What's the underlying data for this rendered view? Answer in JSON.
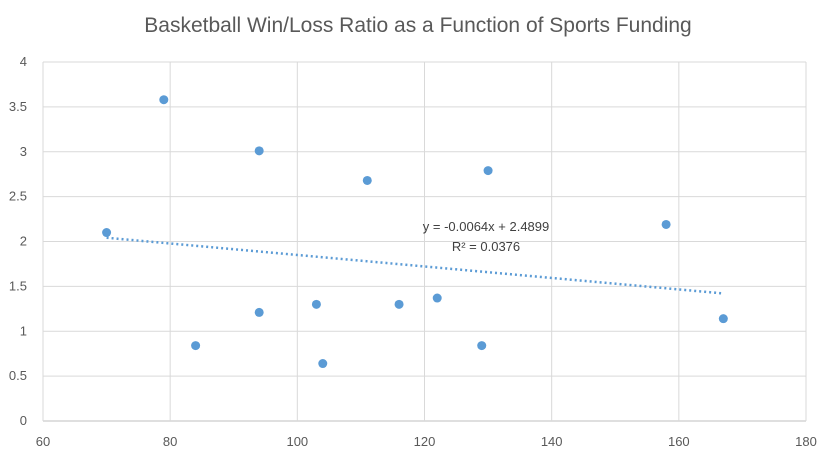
{
  "chart_data": {
    "type": "scatter",
    "title": "Basketball Win/Loss Ratio as a Function of Sports Funding",
    "xlim": [
      60,
      180
    ],
    "ylim": [
      0,
      4
    ],
    "x_ticks": [
      60,
      80,
      100,
      120,
      140,
      160,
      180
    ],
    "y_ticks": [
      0,
      0.5,
      1,
      1.5,
      2,
      2.5,
      3,
      3.5,
      4
    ],
    "grid": true,
    "legend": "none",
    "series": [
      {
        "color": "#5b9bd5",
        "points": [
          {
            "x": 70,
            "y": 2.1
          },
          {
            "x": 79,
            "y": 3.58
          },
          {
            "x": 84,
            "y": 0.84
          },
          {
            "x": 94,
            "y": 3.01
          },
          {
            "x": 94,
            "y": 1.21
          },
          {
            "x": 103,
            "y": 1.3
          },
          {
            "x": 104,
            "y": 0.64
          },
          {
            "x": 111,
            "y": 2.68
          },
          {
            "x": 116,
            "y": 1.3
          },
          {
            "x": 122,
            "y": 1.37
          },
          {
            "x": 129,
            "y": 0.84
          },
          {
            "x": 130,
            "y": 2.79
          },
          {
            "x": 158,
            "y": 2.19
          },
          {
            "x": 167,
            "y": 1.14
          }
        ]
      }
    ],
    "trendline": {
      "type": "linear",
      "slope": -0.0064,
      "intercept": 2.4899,
      "x_range": [
        70,
        167
      ],
      "equation_label": "y = -0.0064x + 2.4899",
      "r2_label": "R² = 0.0376"
    }
  }
}
